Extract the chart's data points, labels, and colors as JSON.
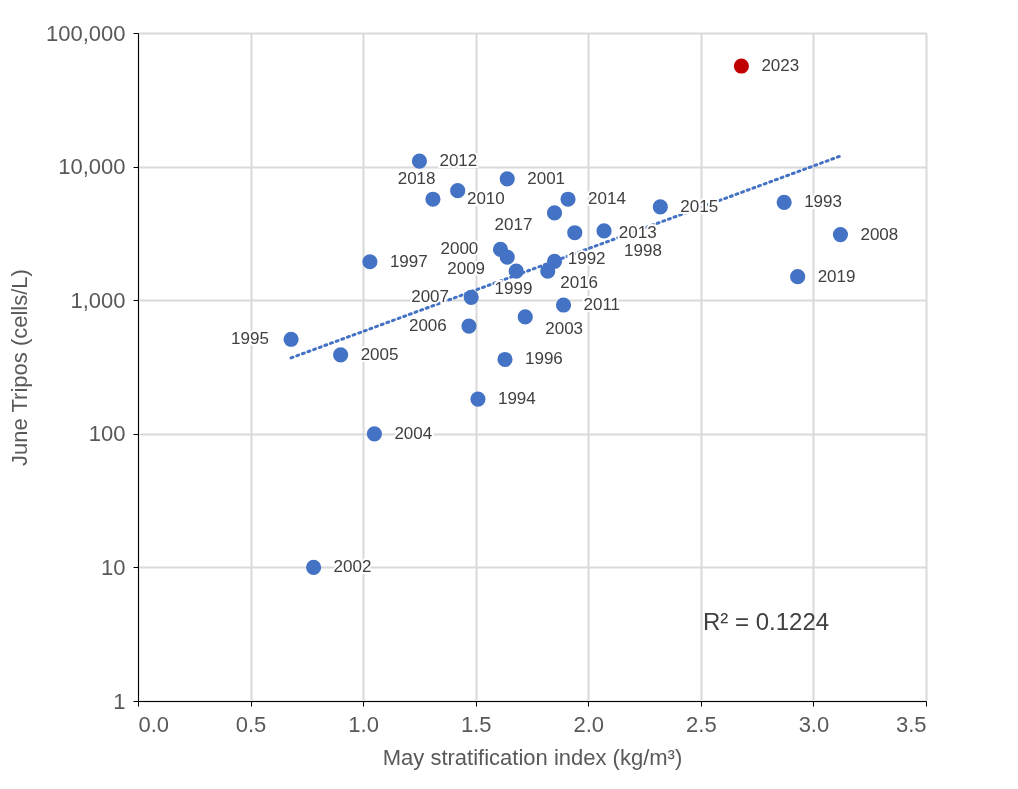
{
  "chart_data": {
    "type": "scatter",
    "xlabel": "May stratification index (kg/m³)",
    "ylabel": "June Tripos (cells/L)",
    "log": "y",
    "grid": true,
    "xlim": [
      0,
      3.5
    ],
    "ylim": [
      1,
      100000
    ],
    "xticks": [
      {
        "value": 0,
        "label": "0.0"
      },
      {
        "value": 0.5,
        "label": "0.5"
      },
      {
        "value": 1,
        "label": "1.0"
      },
      {
        "value": 1.5,
        "label": "1.5"
      },
      {
        "value": 2,
        "label": "2.0"
      },
      {
        "value": 2.5,
        "label": "2.5"
      },
      {
        "value": 3,
        "label": "3.0"
      },
      {
        "value": 3.5,
        "label": "3.5"
      }
    ],
    "yticks": [
      1,
      10,
      100,
      {
        "value": 1000,
        "label": "1,000"
      },
      {
        "value": 10000,
        "label": "10,000"
      },
      {
        "value": 100000,
        "label": "100,000"
      }
    ],
    "annotations": [
      "R² = 0.1224",
      {
        "text": "2023",
        "x": 2.68,
        "y": 56600
      },
      {
        "text": "2012",
        "x": 1.25,
        "y": 11000
      },
      {
        "text": "2001",
        "x": 1.64,
        "y": 8100
      },
      {
        "text": "2018",
        "x": 1.42,
        "y": 6600
      },
      {
        "text": "2010",
        "x": 1.31,
        "y": 5700
      },
      {
        "text": "2014",
        "x": 1.91,
        "y": 5700
      },
      {
        "text": "2017",
        "x": 1.85,
        "y": 4500
      },
      {
        "text": "2015",
        "x": 2.32,
        "y": 5000
      },
      {
        "text": "1993",
        "x": 2.87,
        "y": 5400
      },
      {
        "text": "2008",
        "x": 3.12,
        "y": 3100
      },
      {
        "text": "2019",
        "x": 2.93,
        "y": 1500
      },
      {
        "text": "2013",
        "x": 1.94,
        "y": 3200
      },
      {
        "text": "1998",
        "x": 2.07,
        "y": 3300
      },
      {
        "text": "2000",
        "x": 1.61,
        "y": 2400
      },
      {
        "text": "2009",
        "x": 1.64,
        "y": 2100
      },
      {
        "text": "2016",
        "x": 1.68,
        "y": 1650
      },
      {
        "text": "1992",
        "x": 1.82,
        "y": 1650
      },
      {
        "text": "1999",
        "x": 1.85,
        "y": 1950
      },
      {
        "text": "1997",
        "x": 1.03,
        "y": 1940
      },
      {
        "text": "2007",
        "x": 1.48,
        "y": 1050
      },
      {
        "text": "2011",
        "x": 1.89,
        "y": 920
      },
      {
        "text": "2003",
        "x": 1.72,
        "y": 750
      },
      {
        "text": "2006",
        "x": 1.47,
        "y": 640
      },
      {
        "text": "1995",
        "x": 0.68,
        "y": 510
      },
      {
        "text": "2005",
        "x": 0.9,
        "y": 390
      },
      {
        "text": "1996",
        "x": 1.63,
        "y": 360
      },
      {
        "text": "1994",
        "x": 1.51,
        "y": 182
      },
      {
        "text": "2004",
        "x": 1.05,
        "y": 100
      },
      {
        "text": "2002",
        "x": 0.78,
        "y": 10
      }
    ],
    "series": [
      {
        "marker": "circle",
        "x": [
          2.68,
          1.25,
          1.64,
          1.42,
          1.31,
          1.91,
          1.85,
          2.32,
          2.87,
          3.12,
          2.93,
          1.94,
          2.07,
          1.61,
          1.64,
          1.68,
          1.82,
          1.85,
          1.03,
          1.48,
          1.89,
          1.72,
          1.47,
          0.68,
          0.9,
          1.63,
          1.51,
          1.05,
          0.78
        ],
        "values": [
          56600,
          11000,
          8100,
          6600,
          5700,
          5700,
          4500,
          5000,
          5400,
          3100,
          1500,
          3200,
          3300,
          2400,
          2100,
          1650,
          1650,
          1950,
          1940,
          1050,
          920,
          750,
          640,
          510,
          390,
          360,
          182,
          100,
          10
        ],
        "colors": [
          "#c00000",
          "#4472c4",
          "#4472c4",
          "#4472c4",
          "#4472c4",
          "#4472c4",
          "#4472c4",
          "#4472c4",
          "#4472c4",
          "#4472c4",
          "#4472c4",
          "#4472c4",
          "#4472c4",
          "#4472c4",
          "#4472c4",
          "#4472c4",
          "#4472c4",
          "#4472c4",
          "#4472c4",
          "#4472c4",
          "#4472c4",
          "#4472c4",
          "#4472c4",
          "#4472c4",
          "#4472c4",
          "#4472c4",
          "#4472c4",
          "#4472c4",
          "#4472c4"
        ]
      },
      {
        "type": "line",
        "marker": "none",
        "line_style": "dotted",
        "color": "#4472c4",
        "x": [
          0.68,
          3.12
        ],
        "values": [
          370,
          12000
        ]
      }
    ]
  }
}
